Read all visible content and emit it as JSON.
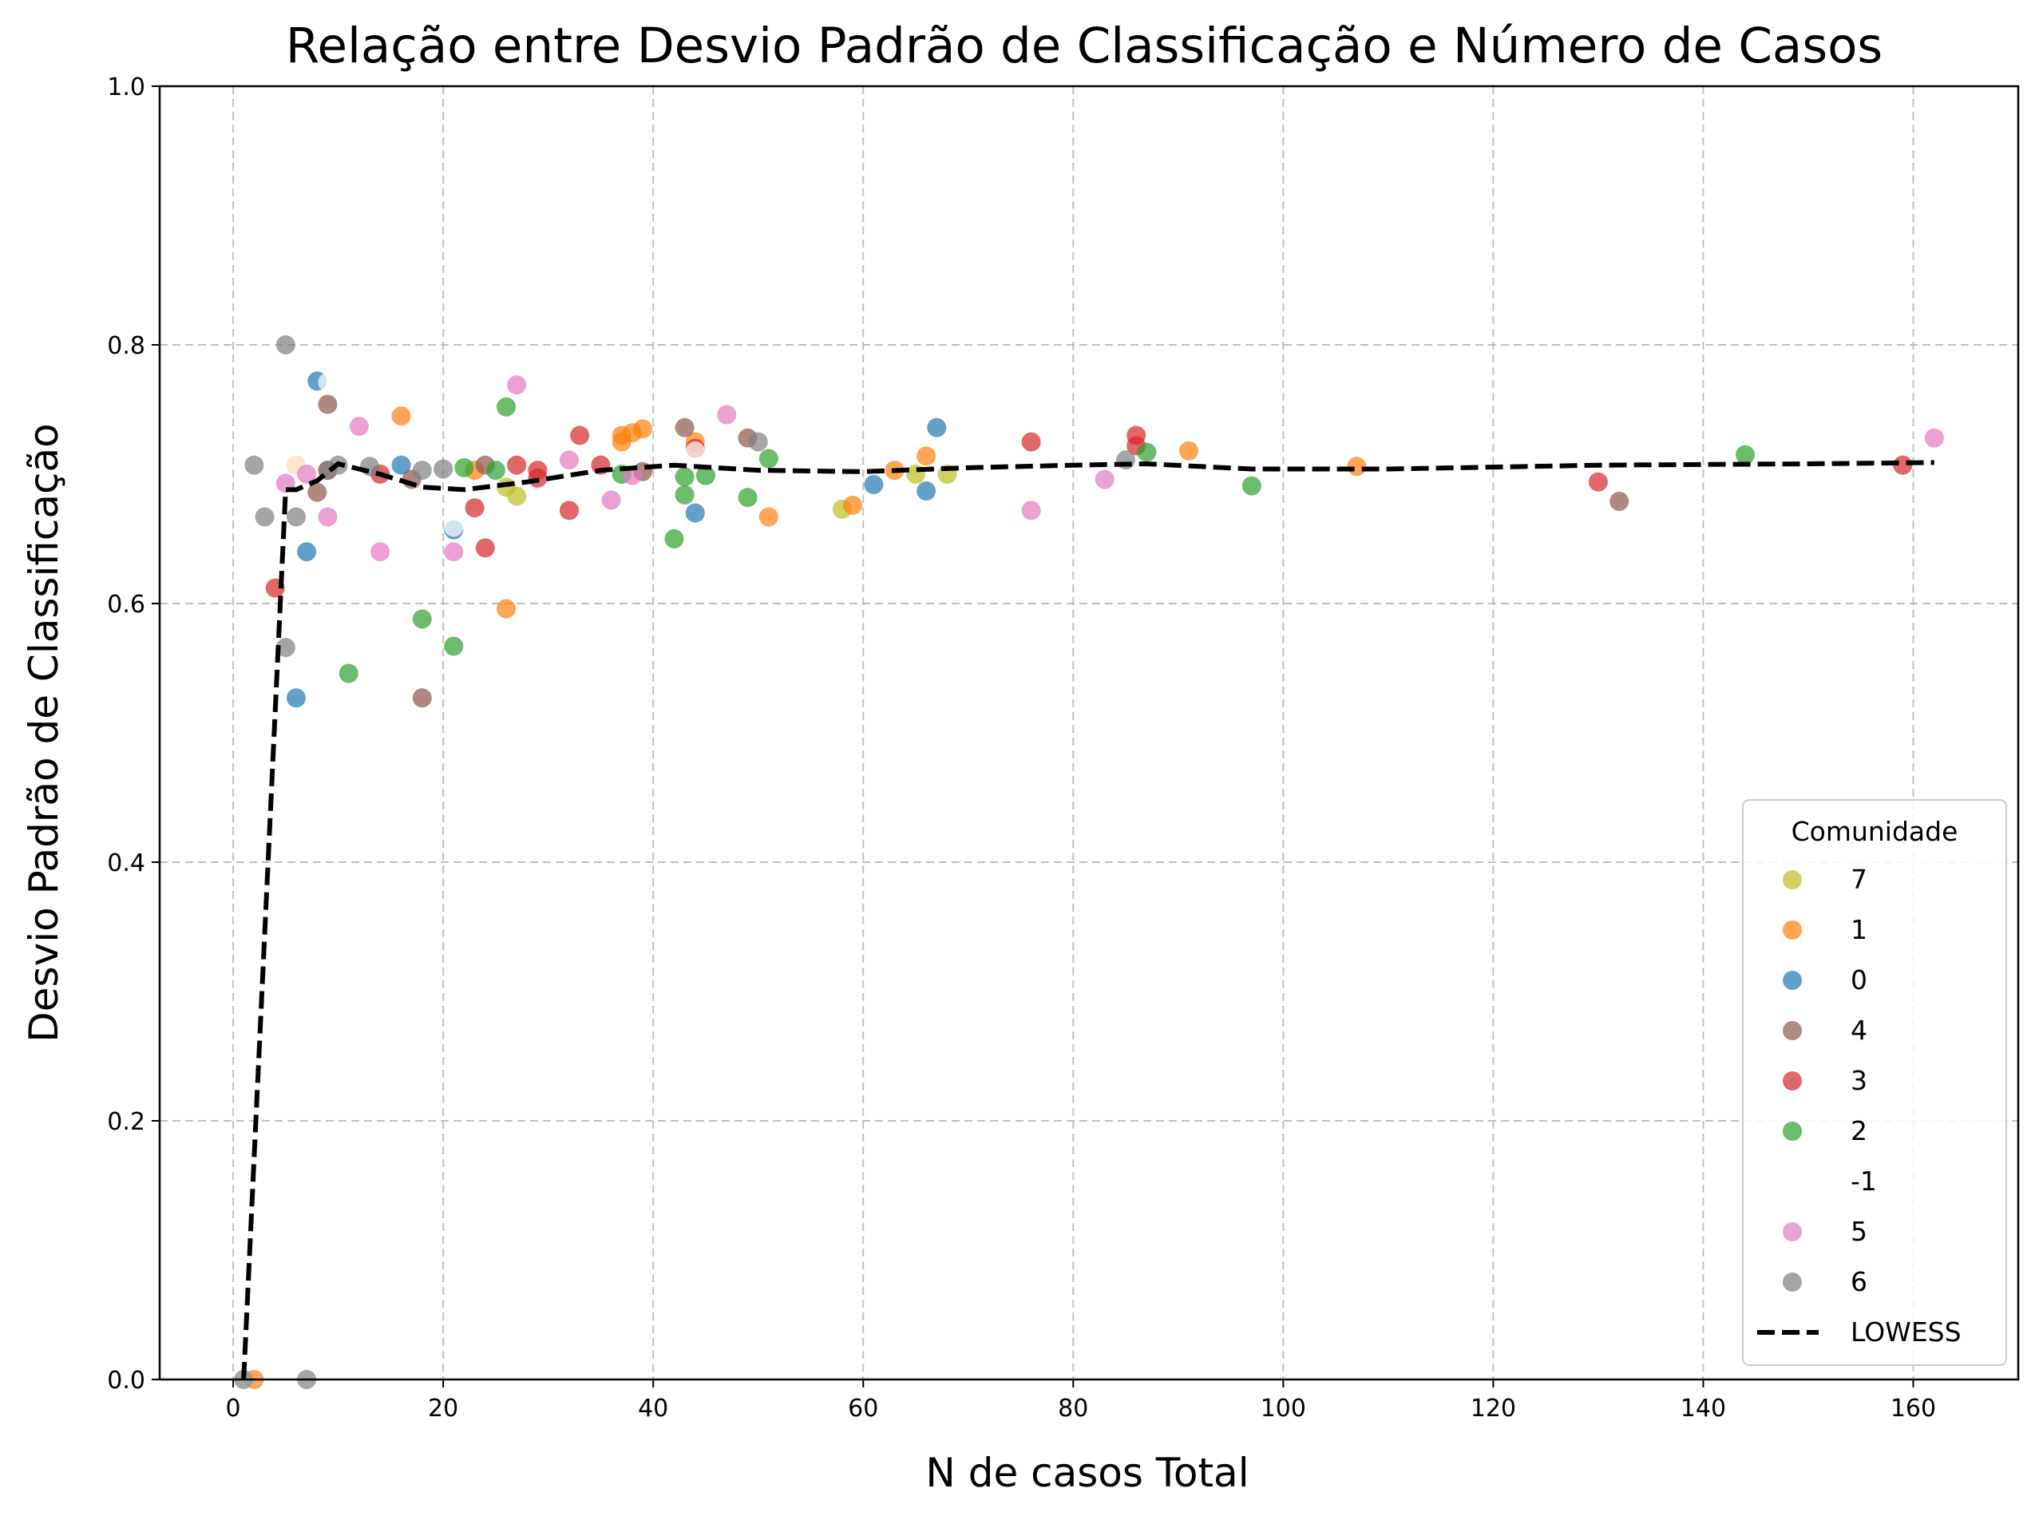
{
  "chart_data": {
    "type": "scatter",
    "title": "Relação entre Desvio Padrão de Classificação e Número de Casos",
    "xlabel": "N de casos Total",
    "ylabel": "Desvio Padrão de Classificação",
    "xlim": [
      -7,
      170
    ],
    "ylim": [
      0.0,
      1.0
    ],
    "x_ticks": [
      0,
      20,
      40,
      60,
      80,
      100,
      120,
      140,
      160
    ],
    "y_ticks": [
      0.0,
      0.2,
      0.4,
      0.6,
      0.8,
      1.0
    ],
    "x_tick_labels": [
      "0",
      "20",
      "40",
      "60",
      "80",
      "100",
      "120",
      "140",
      "160"
    ],
    "y_tick_labels": [
      "0.0",
      "0.2",
      "0.4",
      "0.6",
      "0.8",
      "1.0"
    ],
    "grid": true,
    "legend_title": "Comunidade",
    "legend_placement": "lower-right",
    "series": [
      {
        "name": "7",
        "color": "#bcbd22",
        "points": [
          [
            26,
            0.69
          ],
          [
            27,
            0.683
          ],
          [
            58,
            0.673
          ],
          [
            65,
            0.7
          ],
          [
            68,
            0.7
          ]
        ]
      },
      {
        "name": "1",
        "color": "#ff7f0e",
        "points": [
          [
            2,
            0.0
          ],
          [
            6,
            0.707
          ],
          [
            16,
            0.745
          ],
          [
            23,
            0.703
          ],
          [
            26,
            0.596
          ],
          [
            37,
            0.73
          ],
          [
            37,
            0.725
          ],
          [
            38,
            0.732
          ],
          [
            39,
            0.735
          ],
          [
            44,
            0.725
          ],
          [
            51,
            0.667
          ],
          [
            59,
            0.676
          ],
          [
            63,
            0.703
          ],
          [
            66,
            0.714
          ],
          [
            91,
            0.718
          ],
          [
            107,
            0.706
          ]
        ]
      },
      {
        "name": "0",
        "color": "#1f77b4",
        "points": [
          [
            6,
            0.527
          ],
          [
            7,
            0.64
          ],
          [
            8,
            0.772
          ],
          [
            16,
            0.707
          ],
          [
            21,
            0.657
          ],
          [
            44,
            0.67
          ],
          [
            61,
            0.692
          ],
          [
            66,
            0.687
          ],
          [
            67,
            0.736
          ]
        ]
      },
      {
        "name": "4",
        "color": "#8c564b",
        "points": [
          [
            8,
            0.686
          ],
          [
            9,
            0.754
          ],
          [
            9,
            0.703
          ],
          [
            17,
            0.696
          ],
          [
            18,
            0.527
          ],
          [
            24,
            0.707
          ],
          [
            39,
            0.702
          ],
          [
            43,
            0.736
          ],
          [
            49,
            0.728
          ],
          [
            132,
            0.679
          ]
        ]
      },
      {
        "name": "3",
        "color": "#d62728",
        "points": [
          [
            4,
            0.612
          ],
          [
            14,
            0.7
          ],
          [
            23,
            0.674
          ],
          [
            24,
            0.643
          ],
          [
            27,
            0.707
          ],
          [
            29,
            0.703
          ],
          [
            29,
            0.697
          ],
          [
            32,
            0.672
          ],
          [
            33,
            0.73
          ],
          [
            35,
            0.707
          ],
          [
            44,
            0.72
          ],
          [
            76,
            0.725
          ],
          [
            86,
            0.73
          ],
          [
            86,
            0.722
          ],
          [
            130,
            0.694
          ],
          [
            159,
            0.707
          ]
        ]
      },
      {
        "name": "2",
        "color": "#2ca02c",
        "points": [
          [
            11,
            0.546
          ],
          [
            18,
            0.588
          ],
          [
            21,
            0.567
          ],
          [
            22,
            0.705
          ],
          [
            25,
            0.703
          ],
          [
            26,
            0.752
          ],
          [
            37,
            0.7
          ],
          [
            42,
            0.65
          ],
          [
            43,
            0.698
          ],
          [
            43,
            0.684
          ],
          [
            45,
            0.699
          ],
          [
            49,
            0.682
          ],
          [
            51,
            0.712
          ],
          [
            87,
            0.717
          ],
          [
            97,
            0.691
          ],
          [
            144,
            0.715
          ]
        ]
      },
      {
        "name": "-1",
        "color": "#ffffff",
        "points": [
          [
            1,
            0.0
          ],
          [
            6,
            0.707
          ],
          [
            9,
            0.771
          ],
          [
            21,
            0.659
          ],
          [
            44,
            0.718
          ]
        ]
      },
      {
        "name": "5",
        "color": "#e377c2",
        "points": [
          [
            5,
            0.693
          ],
          [
            7,
            0.7
          ],
          [
            9,
            0.667
          ],
          [
            12,
            0.737
          ],
          [
            14,
            0.64
          ],
          [
            21,
            0.64
          ],
          [
            27,
            0.769
          ],
          [
            32,
            0.711
          ],
          [
            36,
            0.68
          ],
          [
            38,
            0.699
          ],
          [
            47,
            0.746
          ],
          [
            76,
            0.672
          ],
          [
            83,
            0.696
          ],
          [
            162,
            0.728
          ]
        ]
      },
      {
        "name": "6",
        "color": "#7f7f7f",
        "points": [
          [
            1,
            0.0
          ],
          [
            2,
            0.707
          ],
          [
            3,
            0.667
          ],
          [
            5,
            0.8
          ],
          [
            5,
            0.566
          ],
          [
            6,
            0.667
          ],
          [
            7,
            0.0
          ],
          [
            9,
            0.703
          ],
          [
            10,
            0.707
          ],
          [
            13,
            0.706
          ],
          [
            18,
            0.703
          ],
          [
            20,
            0.704
          ],
          [
            50,
            0.725
          ],
          [
            85,
            0.711
          ]
        ]
      }
    ],
    "lowess": {
      "name": "LOWESS",
      "color": "#000000",
      "style": "dashed",
      "points": [
        [
          1,
          0.0
        ],
        [
          5,
          0.688
        ],
        [
          6,
          0.688
        ],
        [
          8,
          0.695
        ],
        [
          10,
          0.708
        ],
        [
          14,
          0.7
        ],
        [
          18,
          0.69
        ],
        [
          22,
          0.688
        ],
        [
          28,
          0.694
        ],
        [
          35,
          0.703
        ],
        [
          42,
          0.707
        ],
        [
          50,
          0.703
        ],
        [
          60,
          0.702
        ],
        [
          70,
          0.705
        ],
        [
          80,
          0.707
        ],
        [
          87,
          0.708
        ],
        [
          97,
          0.704
        ],
        [
          110,
          0.704
        ],
        [
          130,
          0.707
        ],
        [
          150,
          0.708
        ],
        [
          162,
          0.709
        ]
      ]
    }
  }
}
